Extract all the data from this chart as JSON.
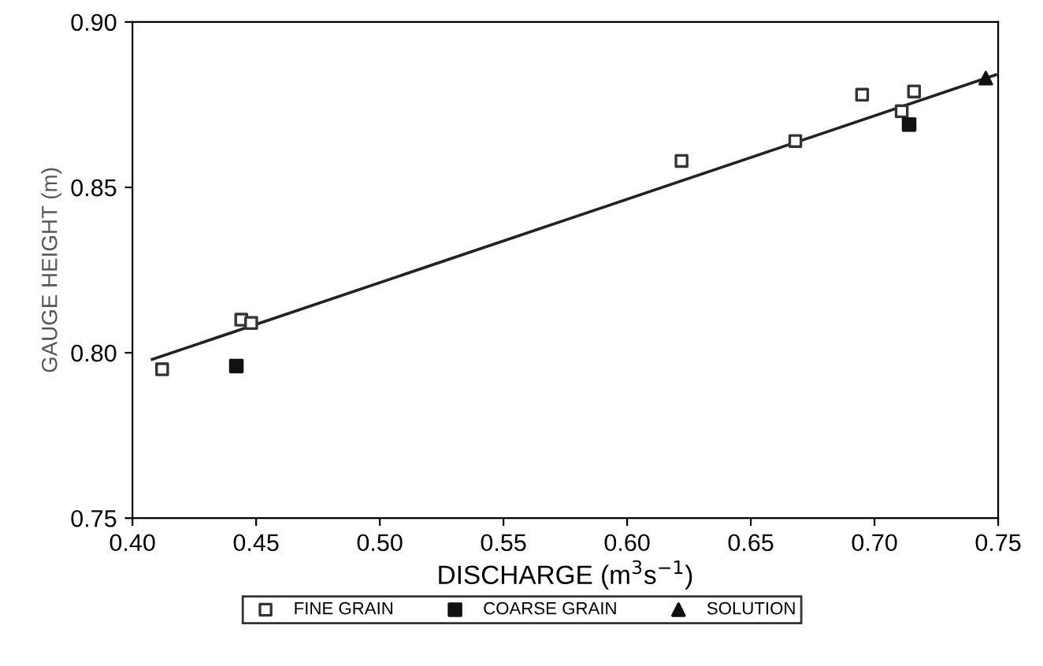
{
  "chart_data": {
    "type": "scatter",
    "xlabel": "DISCHARGE (m$^{3}$s$^{−1}$)",
    "ylabel": "GAUGE HEIGHT (m)",
    "xlim": [
      0.4,
      0.75
    ],
    "ylim": [
      0.75,
      0.9
    ],
    "xticks": [
      {
        "value": 0.4,
        "label": "0.40"
      },
      0.45,
      {
        "value": 0.5,
        "label": "0.50"
      },
      0.55,
      {
        "value": 0.6,
        "label": "0.60"
      },
      0.65,
      {
        "value": 0.7,
        "label": "0.70"
      },
      0.75
    ],
    "yticks": [
      0.75,
      {
        "value": 0.8,
        "label": "0.80"
      },
      0.85,
      {
        "value": 0.9,
        "label": "0.90"
      }
    ],
    "grid": false,
    "legend": "bottom",
    "series": [
      {
        "name": "FINE GRAIN",
        "color": "#333333",
        "marker": "square",
        "x": [
          0.412,
          0.444,
          0.448,
          0.622,
          0.668,
          0.695,
          0.711,
          0.716
        ],
        "values": [
          0.795,
          0.81,
          0.809,
          0.858,
          0.864,
          0.878,
          0.873,
          0.879
        ]
      },
      {
        "name": "COARSE GRAIN",
        "color": "#111111",
        "marker": "square",
        "x": [
          0.442,
          0.714
        ],
        "values": [
          0.796,
          0.869
        ]
      },
      {
        "name": "SOLUTION",
        "color": "#111111",
        "marker": "triangle",
        "x": [
          0.745
        ],
        "values": [
          0.883
        ]
      },
      {
        "type": "line",
        "color": "#222222",
        "line_style": "solid",
        "marker": "none",
        "x": [
          0.408,
          0.749
        ],
        "values": [
          0.798,
          0.884
        ]
      }
    ]
  }
}
